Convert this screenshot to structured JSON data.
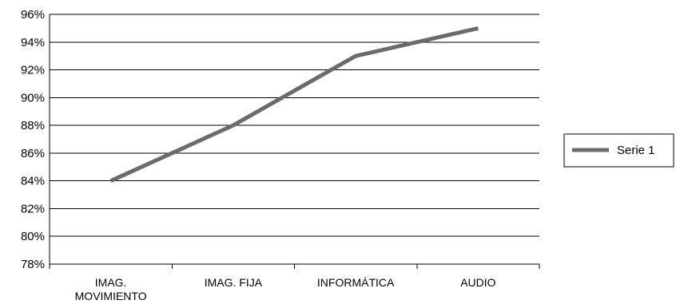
{
  "chart_data": {
    "type": "line",
    "categories": [
      [
        "IMAG.",
        "MOVIMIENTO"
      ],
      [
        "IMAG. FIJA"
      ],
      [
        "INFORMÁTICA"
      ],
      [
        "AUDIO"
      ]
    ],
    "series": [
      {
        "name": "Serie 1",
        "values": [
          84,
          88,
          93,
          95
        ],
        "color": "#6b6b6b"
      }
    ],
    "ylim": [
      78,
      96
    ],
    "yticks": [
      78,
      80,
      82,
      84,
      86,
      88,
      90,
      92,
      94,
      96
    ],
    "y_tick_suffix": "%",
    "grid": true,
    "legend_position": "right"
  }
}
